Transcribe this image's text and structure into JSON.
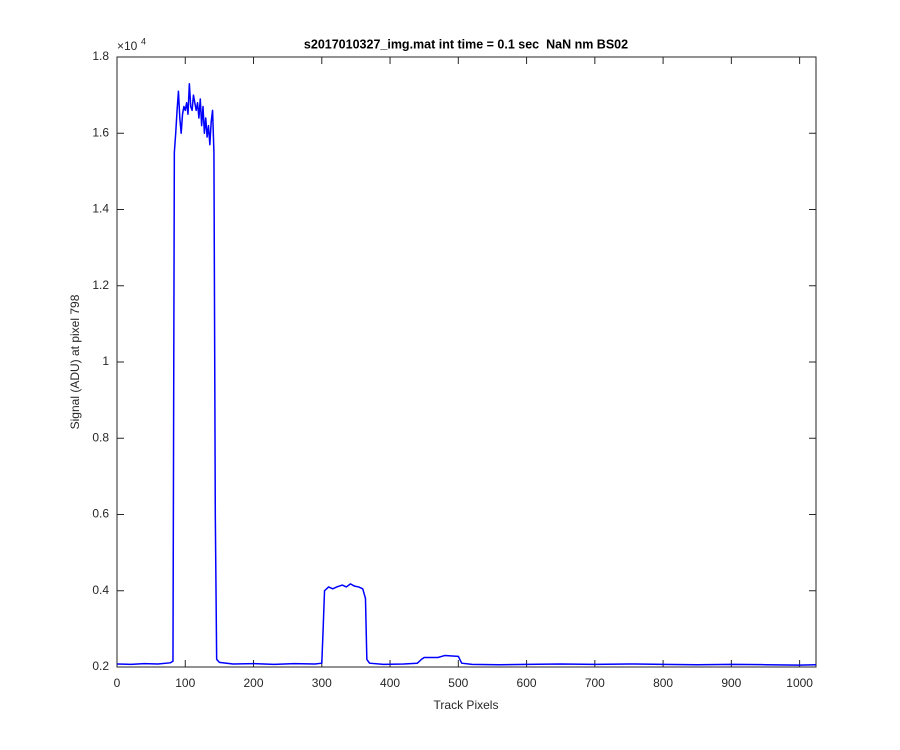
{
  "chart_data": {
    "type": "line",
    "title": "s2017010327_img.mat int time = 0.1 sec  NaN nm BS02",
    "x_label": "Track Pixels",
    "y_label": "Signal (ADU) at pixel 798",
    "y_multiplier": "×10",
    "y_multiplier_exponent": "4",
    "color": "#0000ff",
    "x": [
      0,
      20,
      40,
      60,
      78,
      82,
      84,
      86,
      88,
      90,
      92,
      94,
      96,
      98,
      100,
      102,
      104,
      106,
      108,
      110,
      112,
      114,
      116,
      118,
      120,
      122,
      124,
      126,
      128,
      130,
      132,
      134,
      136,
      138,
      140,
      142,
      144,
      146,
      150,
      170,
      200,
      230,
      260,
      290,
      300,
      302,
      304,
      310,
      316,
      322,
      330,
      336,
      342,
      348,
      354,
      360,
      364,
      366,
      370,
      390,
      420,
      440,
      446,
      450,
      470,
      480,
      500,
      505,
      520,
      560,
      600,
      650,
      700,
      750,
      800,
      850,
      900,
      950,
      1000,
      1024
    ],
    "values": [
      0.208,
      0.207,
      0.209,
      0.208,
      0.211,
      0.215,
      1.55,
      1.6,
      1.66,
      1.71,
      1.64,
      1.6,
      1.65,
      1.67,
      1.66,
      1.68,
      1.65,
      1.73,
      1.67,
      1.66,
      1.7,
      1.68,
      1.66,
      1.68,
      1.64,
      1.69,
      1.62,
      1.67,
      1.6,
      1.64,
      1.59,
      1.62,
      1.57,
      1.63,
      1.66,
      1.55,
      0.6,
      0.22,
      0.212,
      0.208,
      0.209,
      0.207,
      0.209,
      0.208,
      0.21,
      0.3,
      0.4,
      0.41,
      0.405,
      0.41,
      0.415,
      0.41,
      0.418,
      0.412,
      0.41,
      0.405,
      0.38,
      0.22,
      0.21,
      0.207,
      0.208,
      0.21,
      0.22,
      0.225,
      0.225,
      0.23,
      0.228,
      0.21,
      0.207,
      0.206,
      0.207,
      0.208,
      0.207,
      0.208,
      0.207,
      0.206,
      0.207,
      0.206,
      0.205,
      0.206
    ],
    "xlim": [
      0,
      1024
    ],
    "xticks": [
      0,
      100,
      200,
      300,
      400,
      500,
      600,
      700,
      800,
      900,
      1000
    ],
    "ylim": [
      0.2,
      1.8
    ],
    "yticks": [
      0.2,
      0.4,
      0.6,
      0.8,
      1,
      1.2,
      1.4,
      1.6,
      1.8
    ],
    "grid": false
  }
}
